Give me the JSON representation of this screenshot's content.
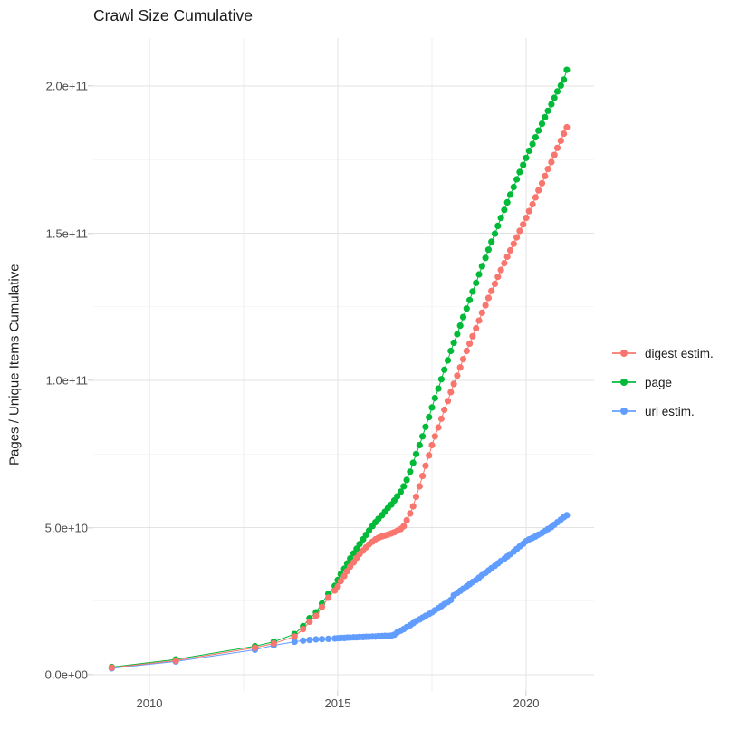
{
  "chart_data": {
    "type": "scatter",
    "title": "Crawl Size Cumulative",
    "xlabel": "",
    "ylabel": "Pages / Unique Items Cumulative",
    "x_unit": "decimal year",
    "value_unit": 1000000000.0,
    "xlim": [
      2008.5,
      2021.8
    ],
    "ylim": [
      0,
      216000000000.0
    ],
    "grid": "major+minor",
    "legend_position": "right",
    "x_ticks": [
      2010,
      2015,
      2020
    ],
    "x_tick_labels": [
      "2010",
      "2015",
      "2020"
    ],
    "x_minor_ticks": [
      2012.5,
      2017.5
    ],
    "y_ticks": [
      0,
      50,
      100,
      150,
      200
    ],
    "y_tick_labels": [
      "0.0e+00",
      "5.0e+10",
      "1.0e+11",
      "1.5e+11",
      "2.0e+11"
    ],
    "y_minor_ticks": [
      25,
      75,
      125,
      175
    ],
    "series": [
      {
        "name": "digest estim.",
        "color": "#F8766D",
        "points": [
          [
            2009.0,
            2.4
          ],
          [
            2010.7,
            4.8
          ],
          [
            2012.8,
            9.2
          ],
          [
            2013.3,
            10.6
          ],
          [
            2013.85,
            13.0
          ],
          [
            2014.08,
            15.5
          ],
          [
            2014.25,
            18.0
          ],
          [
            2014.42,
            20.0
          ],
          [
            2014.58,
            23.0
          ],
          [
            2014.75,
            26.2
          ],
          [
            2014.92,
            28.6
          ],
          [
            2015.0,
            30.0
          ],
          [
            2015.08,
            31.8
          ],
          [
            2015.17,
            33.5
          ],
          [
            2015.25,
            35.2
          ],
          [
            2015.33,
            36.7
          ],
          [
            2015.42,
            38.2
          ],
          [
            2015.5,
            39.7
          ],
          [
            2015.58,
            41.0
          ],
          [
            2015.67,
            42.2
          ],
          [
            2015.75,
            43.3
          ],
          [
            2015.83,
            44.3
          ],
          [
            2015.92,
            45.2
          ],
          [
            2016.0,
            46.0
          ],
          [
            2016.08,
            46.5
          ],
          [
            2016.17,
            47.0
          ],
          [
            2016.25,
            47.3
          ],
          [
            2016.33,
            47.6
          ],
          [
            2016.42,
            48.0
          ],
          [
            2016.5,
            48.4
          ],
          [
            2016.58,
            48.9
          ],
          [
            2016.67,
            49.5
          ],
          [
            2016.75,
            50.5
          ],
          [
            2016.83,
            52.5
          ],
          [
            2016.92,
            54.8
          ],
          [
            2017.0,
            57.2
          ],
          [
            2017.08,
            60.5
          ],
          [
            2017.17,
            64.0
          ],
          [
            2017.25,
            67.5
          ],
          [
            2017.33,
            71.0
          ],
          [
            2017.42,
            74.5
          ],
          [
            2017.5,
            78.0
          ],
          [
            2017.58,
            81.0
          ],
          [
            2017.67,
            84.0
          ],
          [
            2017.75,
            87.0
          ],
          [
            2017.83,
            90.0
          ],
          [
            2017.92,
            93.0
          ],
          [
            2018.0,
            96.0
          ],
          [
            2018.08,
            98.8
          ],
          [
            2018.17,
            101.6
          ],
          [
            2018.25,
            104.4
          ],
          [
            2018.33,
            107.2
          ],
          [
            2018.42,
            110.0
          ],
          [
            2018.5,
            112.5
          ],
          [
            2018.58,
            115.0
          ],
          [
            2018.67,
            117.7
          ],
          [
            2018.75,
            120.3
          ],
          [
            2018.83,
            123.0
          ],
          [
            2018.92,
            125.5
          ],
          [
            2019.0,
            128.0
          ],
          [
            2019.08,
            130.4
          ],
          [
            2019.17,
            132.8
          ],
          [
            2019.25,
            135.2
          ],
          [
            2019.33,
            137.5
          ],
          [
            2019.42,
            139.8
          ],
          [
            2019.5,
            142.0
          ],
          [
            2019.58,
            144.2
          ],
          [
            2019.67,
            146.4
          ],
          [
            2019.75,
            148.6
          ],
          [
            2019.83,
            150.8
          ],
          [
            2019.92,
            153.0
          ],
          [
            2020.0,
            155.2
          ],
          [
            2020.08,
            157.5
          ],
          [
            2020.17,
            159.8
          ],
          [
            2020.25,
            162.2
          ],
          [
            2020.33,
            164.6
          ],
          [
            2020.42,
            167.0
          ],
          [
            2020.5,
            169.4
          ],
          [
            2020.58,
            171.8
          ],
          [
            2020.67,
            174.2
          ],
          [
            2020.75,
            176.6
          ],
          [
            2020.83,
            179.0
          ],
          [
            2020.92,
            181.4
          ],
          [
            2021.0,
            183.8
          ],
          [
            2021.08,
            186.0
          ]
        ]
      },
      {
        "name": "page",
        "color": "#00BA38",
        "points": [
          [
            2009.0,
            2.6
          ],
          [
            2010.7,
            5.2
          ],
          [
            2012.8,
            9.7
          ],
          [
            2013.3,
            11.2
          ],
          [
            2013.85,
            13.8
          ],
          [
            2014.08,
            16.5
          ],
          [
            2014.25,
            19.2
          ],
          [
            2014.42,
            21.2
          ],
          [
            2014.58,
            24.2
          ],
          [
            2014.75,
            27.5
          ],
          [
            2014.92,
            30.2
          ],
          [
            2015.0,
            32.2
          ],
          [
            2015.08,
            34.2
          ],
          [
            2015.17,
            36.0
          ],
          [
            2015.25,
            37.8
          ],
          [
            2015.33,
            39.5
          ],
          [
            2015.42,
            41.2
          ],
          [
            2015.5,
            42.8
          ],
          [
            2015.58,
            44.4
          ],
          [
            2015.67,
            46.0
          ],
          [
            2015.75,
            47.5
          ],
          [
            2015.83,
            49.0
          ],
          [
            2015.92,
            50.5
          ],
          [
            2016.0,
            51.8
          ],
          [
            2016.08,
            53.0
          ],
          [
            2016.17,
            54.2
          ],
          [
            2016.25,
            55.4
          ],
          [
            2016.33,
            56.6
          ],
          [
            2016.42,
            57.8
          ],
          [
            2016.5,
            59.2
          ],
          [
            2016.58,
            60.6
          ],
          [
            2016.67,
            62.2
          ],
          [
            2016.75,
            64.0
          ],
          [
            2016.83,
            66.2
          ],
          [
            2016.92,
            69.0
          ],
          [
            2017.0,
            72.0
          ],
          [
            2017.08,
            75.0
          ],
          [
            2017.17,
            78.0
          ],
          [
            2017.25,
            81.0
          ],
          [
            2017.33,
            84.2
          ],
          [
            2017.42,
            87.5
          ],
          [
            2017.5,
            90.8
          ],
          [
            2017.58,
            94.0
          ],
          [
            2017.67,
            97.2
          ],
          [
            2017.75,
            100.4
          ],
          [
            2017.83,
            103.6
          ],
          [
            2017.92,
            106.8
          ],
          [
            2018.0,
            110.0
          ],
          [
            2018.08,
            112.8
          ],
          [
            2018.17,
            115.7
          ],
          [
            2018.25,
            118.6
          ],
          [
            2018.33,
            121.5
          ],
          [
            2018.42,
            124.4
          ],
          [
            2018.5,
            127.3
          ],
          [
            2018.58,
            130.2
          ],
          [
            2018.67,
            133.1
          ],
          [
            2018.75,
            136.0
          ],
          [
            2018.83,
            138.8
          ],
          [
            2018.92,
            141.6
          ],
          [
            2019.0,
            144.4
          ],
          [
            2019.08,
            147.1
          ],
          [
            2019.17,
            149.8
          ],
          [
            2019.25,
            152.5
          ],
          [
            2019.33,
            155.2
          ],
          [
            2019.42,
            157.9
          ],
          [
            2019.5,
            160.5
          ],
          [
            2019.58,
            163.1
          ],
          [
            2019.67,
            165.7
          ],
          [
            2019.75,
            168.3
          ],
          [
            2019.83,
            170.8
          ],
          [
            2019.92,
            173.2
          ],
          [
            2020.0,
            175.6
          ],
          [
            2020.08,
            178.0
          ],
          [
            2020.17,
            180.3
          ],
          [
            2020.25,
            182.6
          ],
          [
            2020.33,
            184.9
          ],
          [
            2020.42,
            187.2
          ],
          [
            2020.5,
            189.4
          ],
          [
            2020.58,
            191.6
          ],
          [
            2020.67,
            193.8
          ],
          [
            2020.75,
            196.0
          ],
          [
            2020.83,
            198.2
          ],
          [
            2020.92,
            200.2
          ],
          [
            2021.0,
            202.2
          ],
          [
            2021.08,
            205.5
          ]
        ]
      },
      {
        "name": "url estim.",
        "color": "#619CFF",
        "points": [
          [
            2009.0,
            2.2
          ],
          [
            2010.7,
            4.5
          ],
          [
            2012.8,
            8.5
          ],
          [
            2013.3,
            10.0
          ],
          [
            2013.85,
            11.2
          ],
          [
            2014.08,
            11.6
          ],
          [
            2014.25,
            11.8
          ],
          [
            2014.42,
            12.0
          ],
          [
            2014.58,
            12.1
          ],
          [
            2014.75,
            12.2
          ],
          [
            2014.92,
            12.3
          ],
          [
            2015.0,
            12.4
          ],
          [
            2015.08,
            12.5
          ],
          [
            2015.17,
            12.5
          ],
          [
            2015.25,
            12.6
          ],
          [
            2015.33,
            12.6
          ],
          [
            2015.42,
            12.7
          ],
          [
            2015.5,
            12.7
          ],
          [
            2015.58,
            12.8
          ],
          [
            2015.67,
            12.8
          ],
          [
            2015.75,
            12.9
          ],
          [
            2015.83,
            12.9
          ],
          [
            2015.92,
            13.0
          ],
          [
            2016.0,
            13.0
          ],
          [
            2016.08,
            13.1
          ],
          [
            2016.17,
            13.1
          ],
          [
            2016.25,
            13.2
          ],
          [
            2016.33,
            13.2
          ],
          [
            2016.42,
            13.3
          ],
          [
            2016.5,
            13.6
          ],
          [
            2016.58,
            14.4
          ],
          [
            2016.67,
            15.0
          ],
          [
            2016.75,
            15.5
          ],
          [
            2016.83,
            16.2
          ],
          [
            2016.92,
            16.8
          ],
          [
            2017.0,
            17.5
          ],
          [
            2017.08,
            18.2
          ],
          [
            2017.17,
            18.8
          ],
          [
            2017.25,
            19.4
          ],
          [
            2017.33,
            20.0
          ],
          [
            2017.42,
            20.6
          ],
          [
            2017.5,
            21.2
          ],
          [
            2017.58,
            21.9
          ],
          [
            2017.67,
            22.6
          ],
          [
            2017.75,
            23.3
          ],
          [
            2017.83,
            24.0
          ],
          [
            2017.92,
            24.7
          ],
          [
            2018.0,
            25.4
          ],
          [
            2018.08,
            27.0
          ],
          [
            2018.17,
            27.8
          ],
          [
            2018.25,
            28.5
          ],
          [
            2018.33,
            29.2
          ],
          [
            2018.42,
            30.0
          ],
          [
            2018.5,
            30.7
          ],
          [
            2018.58,
            31.5
          ],
          [
            2018.67,
            32.2
          ],
          [
            2018.75,
            33.0
          ],
          [
            2018.83,
            33.8
          ],
          [
            2018.92,
            34.6
          ],
          [
            2019.0,
            35.4
          ],
          [
            2019.08,
            36.2
          ],
          [
            2019.17,
            37.0
          ],
          [
            2019.25,
            37.8
          ],
          [
            2019.33,
            38.6
          ],
          [
            2019.42,
            39.4
          ],
          [
            2019.5,
            40.2
          ],
          [
            2019.58,
            41.0
          ],
          [
            2019.67,
            41.8
          ],
          [
            2019.75,
            42.7
          ],
          [
            2019.83,
            43.6
          ],
          [
            2019.92,
            44.5
          ],
          [
            2020.0,
            45.4
          ],
          [
            2020.08,
            46.0
          ],
          [
            2020.17,
            46.5
          ],
          [
            2020.25,
            47.0
          ],
          [
            2020.33,
            47.6
          ],
          [
            2020.42,
            48.2
          ],
          [
            2020.5,
            48.8
          ],
          [
            2020.58,
            49.5
          ],
          [
            2020.67,
            50.2
          ],
          [
            2020.75,
            51.0
          ],
          [
            2020.83,
            51.8
          ],
          [
            2020.92,
            52.7
          ],
          [
            2021.0,
            53.5
          ],
          [
            2021.08,
            54.2
          ]
        ]
      }
    ]
  }
}
